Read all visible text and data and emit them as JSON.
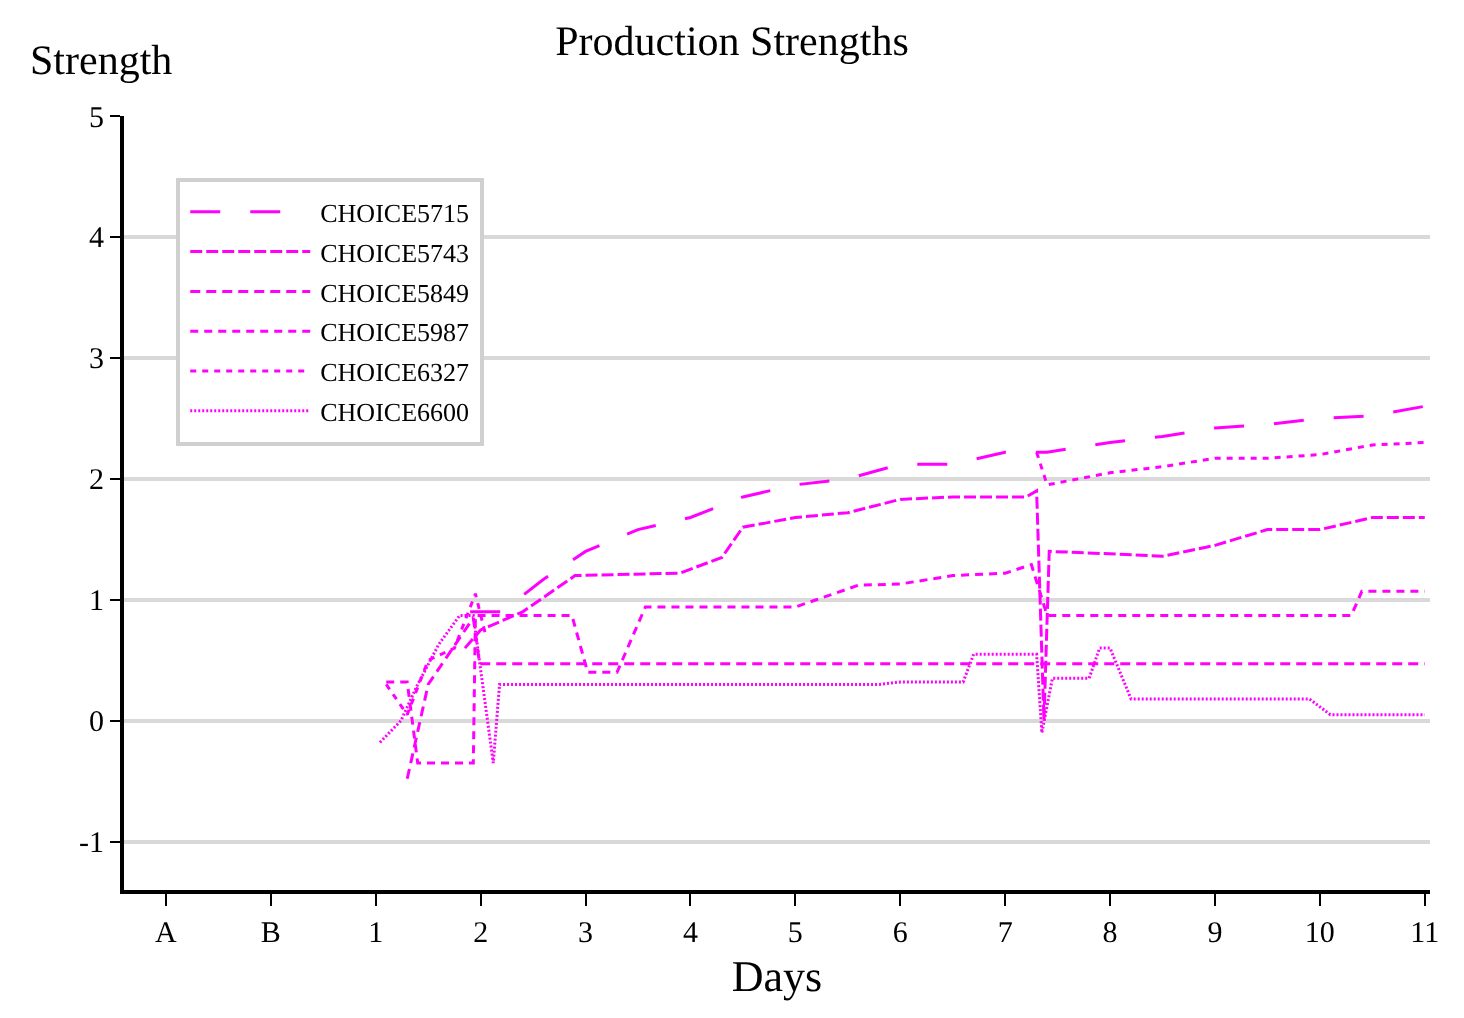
{
  "chart_data": {
    "type": "line",
    "title": "Production Strengths",
    "xlabel": "Days",
    "ylabel": "Strength",
    "xlim": [
      -1.4,
      11.05
    ],
    "xticks": [
      {
        "value": -1,
        "label": "A"
      },
      {
        "value": 0,
        "label": "B"
      },
      1,
      2,
      3,
      4,
      5,
      6,
      7,
      8,
      9,
      10,
      11
    ],
    "ylim": [
      -1.4,
      5
    ],
    "yticks": [
      -1,
      0,
      1,
      2,
      3,
      4,
      5
    ],
    "grid": "y",
    "legend": "top left",
    "marker": "none",
    "series": [
      {
        "name": "CHOICE5715",
        "color": "#ff00ff",
        "line_style": "dashed",
        "x": [
          1.9,
          2.2,
          2.6,
          3,
          3.5,
          4,
          4.5,
          5,
          5.5,
          6,
          6.5,
          7,
          7.4,
          8,
          8.5,
          9,
          9.5,
          10,
          10.5,
          11
        ],
        "values": [
          0.9,
          0.9,
          1.17,
          1.4,
          1.58,
          1.68,
          1.85,
          1.95,
          2.0,
          2.12,
          2.12,
          2.22,
          2.22,
          2.3,
          2.35,
          2.42,
          2.45,
          2.5,
          2.52,
          2.6
        ]
      },
      {
        "name": "CHOICE5743",
        "color": "#ff00ff",
        "line_style": "dashed",
        "x": [
          1.85,
          2.0,
          2.4,
          2.9,
          3.9,
          4.3,
          4.5,
          5,
          5.5,
          6,
          6.5,
          7.2,
          7.3,
          7.37,
          7.42,
          8,
          8.5,
          9,
          9.5,
          10,
          10.5,
          11
        ],
        "values": [
          0.6,
          0.75,
          0.9,
          1.2,
          1.22,
          1.35,
          1.6,
          1.68,
          1.72,
          1.83,
          1.85,
          1.85,
          1.9,
          0.0,
          1.4,
          1.38,
          1.36,
          1.45,
          1.58,
          1.58,
          1.68,
          1.68
        ]
      },
      {
        "name": "CHOICE5849",
        "color": "#ff00ff",
        "line_style": "dashed",
        "x": [
          1.3,
          1.5,
          1.93,
          1.99,
          11
        ],
        "values": [
          -0.48,
          0.3,
          0.85,
          0.47,
          0.47
        ]
      },
      {
        "name": "CHOICE5987",
        "color": "#ff00ff",
        "line_style": "dashed",
        "x": [
          1.1,
          1.3,
          1.4,
          1.93,
          1.95,
          2.87,
          3.02,
          3.3,
          3.57,
          5,
          5.2,
          5.6,
          6,
          6.5,
          7,
          7.25,
          7.4,
          10.3,
          10.4,
          11
        ],
        "values": [
          0.32,
          0.32,
          -0.35,
          -0.35,
          0.87,
          0.87,
          0.4,
          0.4,
          0.94,
          0.94,
          1.0,
          1.12,
          1.13,
          1.2,
          1.22,
          1.29,
          0.87,
          0.87,
          1.07,
          1.07
        ]
      },
      {
        "name": "CHOICE6327",
        "color": "#ff00ff",
        "line_style": "dotted",
        "x": [
          1.1,
          1.3,
          1.5,
          1.75,
          1.95,
          2.05,
          7.0,
          7.3,
          7.4,
          8,
          8.5,
          9,
          9.5,
          10,
          10.5,
          11
        ],
        "values": [
          0.3,
          0.05,
          0.5,
          0.6,
          1.05,
          0.7,
          null,
          2.22,
          1.95,
          2.05,
          2.1,
          2.17,
          2.17,
          2.2,
          2.28,
          2.3
        ]
      },
      {
        "name": "CHOICE6600",
        "color": "#ff00ff",
        "line_style": "dotted",
        "x": [
          1.04,
          1.24,
          1.4,
          1.6,
          1.8,
          1.93,
          2.12,
          2.18,
          5.8,
          6,
          6.6,
          6.7,
          7.3,
          7.35,
          7.45,
          7.5,
          7.8,
          7.9,
          8.0,
          8.2,
          9.9,
          10.1,
          11
        ],
        "values": [
          -0.18,
          0.0,
          0.3,
          0.63,
          0.87,
          0.87,
          -0.35,
          0.3,
          0.3,
          0.32,
          0.32,
          0.55,
          0.55,
          -0.1,
          0.35,
          0.35,
          0.35,
          0.6,
          0.6,
          0.18,
          0.18,
          0.05,
          0.05
        ]
      }
    ]
  }
}
